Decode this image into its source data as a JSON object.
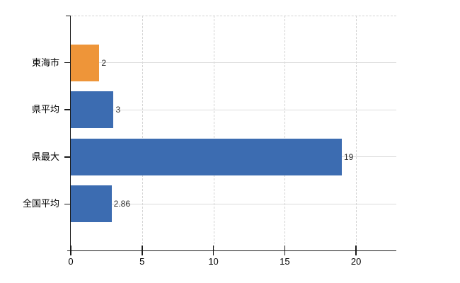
{
  "chart_data": {
    "type": "bar",
    "orientation": "horizontal",
    "title": "",
    "xlabel": "",
    "ylabel": "",
    "categories": [
      "東海市",
      "県平均",
      "県最大",
      "全国平均"
    ],
    "values": [
      2,
      3,
      19,
      2.86
    ],
    "value_labels": [
      "2",
      "3",
      "19",
      "2.86"
    ],
    "bar_colors": [
      "#EE9539",
      "#3C6CB1",
      "#3C6CB1",
      "#3C6CB1"
    ],
    "xlim": [
      0,
      22.82
    ],
    "xticks": [
      0,
      5,
      10,
      15,
      20
    ],
    "xtick_labels": [
      "0",
      "5",
      "10",
      "15",
      "20"
    ],
    "legend": "none",
    "grid": {
      "horizontal_style": "solid",
      "vertical_style": "dashed",
      "horizontal_color": "#dcdcdc",
      "dashed_color": "#d2d2d2"
    },
    "colors": {
      "axis": "#1a1a1a",
      "category_label": "#000000",
      "value_label": "#333333",
      "background": "#ffffff"
    }
  }
}
